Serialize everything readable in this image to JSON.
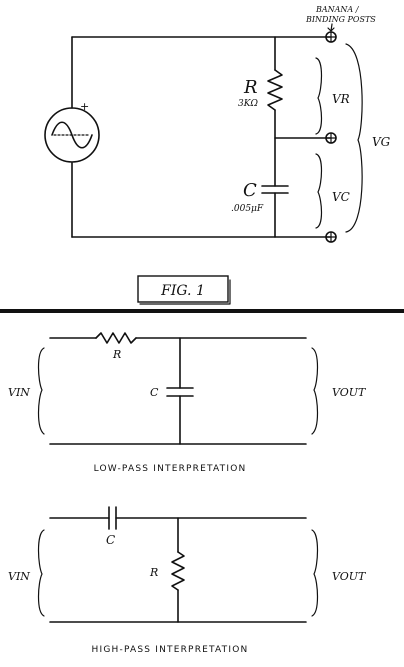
{
  "fig1": {
    "top_note": "BANANA /",
    "top_note2": "BINDING POSTS",
    "r_label": "R",
    "r_value": "3KΩ",
    "c_label": "C",
    "c_value": ".005μF",
    "vr_label": "VR",
    "vc_label": "VC",
    "vg_label": "VG",
    "source_plus": "+",
    "caption": "FIG. 1"
  },
  "lowpass": {
    "r_label": "R",
    "c_label": "C",
    "vin_label": "VIN",
    "vout_label": "VOUT",
    "caption": "LOW-PASS INTERPRETATION"
  },
  "highpass": {
    "c_label": "C",
    "r_label": "R",
    "vin_label": "VIN",
    "vout_label": "VOUT",
    "caption": "HIGH-PASS INTERPRETATION"
  }
}
